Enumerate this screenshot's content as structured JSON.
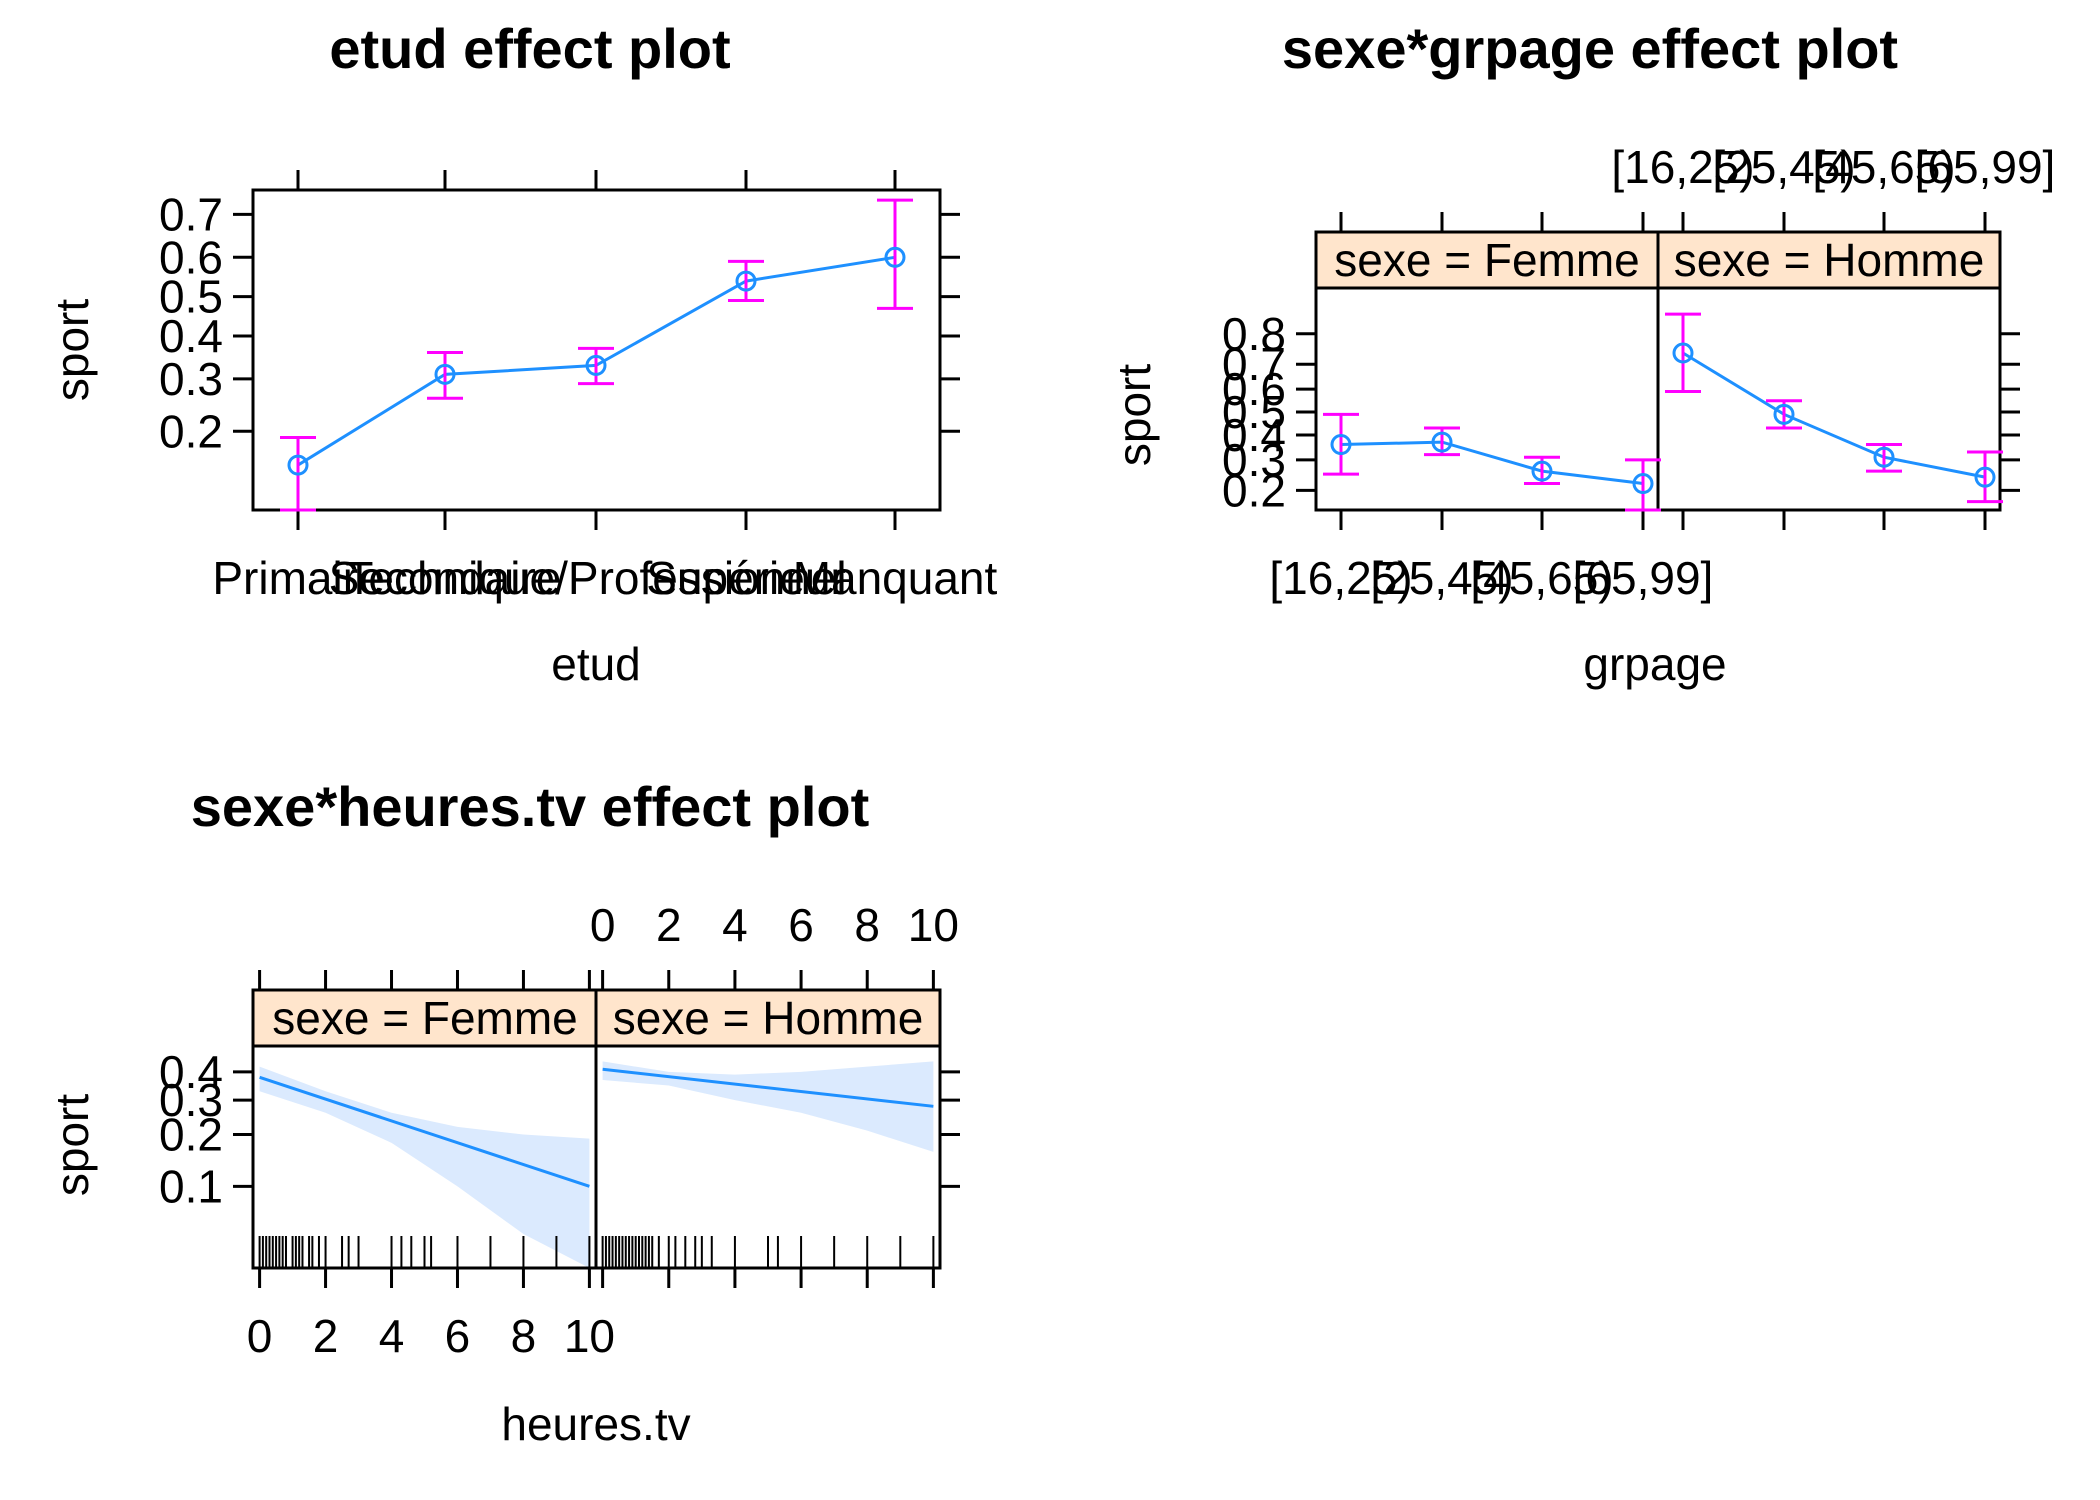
{
  "colors": {
    "line": "#1e90ff",
    "error_bar": "#ff00ff",
    "band": "#dbeafe",
    "strip_bg": "#ffe5cc",
    "frame": "#000000"
  },
  "chart_data": [
    {
      "type": "line",
      "title": "etud effect plot",
      "xlabel": "etud",
      "ylabel": "sport",
      "categories": [
        "Primaire",
        "Secondaire",
        "Technique/Professionnel",
        "Supérieur",
        "Manquant"
      ],
      "series": [
        {
          "name": "sport",
          "values": [
            0.15,
            0.31,
            0.33,
            0.54,
            0.6
          ],
          "lower": [
            0.1,
            0.26,
            0.29,
            0.49,
            0.47
          ],
          "upper": [
            0.19,
            0.36,
            0.37,
            0.59,
            0.73
          ]
        }
      ],
      "yticks": [
        0.2,
        0.3,
        0.4,
        0.5,
        0.6,
        0.7
      ],
      "ytick_labels": [
        "0.2",
        "0.3",
        "0.4",
        "0.5",
        "0.6",
        "0.7"
      ],
      "ylim": [
        0.1,
        0.75
      ],
      "yscale": "logit"
    },
    {
      "type": "line",
      "title": "sexe*grpage effect plot",
      "xlabel": "grpage",
      "ylabel": "sport",
      "categories": [
        "[16,25)",
        "[25,45)",
        "[45,65)",
        "[65,99]"
      ],
      "panels": [
        {
          "strip": "sexe = Femme",
          "values": [
            0.36,
            0.37,
            0.26,
            0.22
          ],
          "lower": [
            0.25,
            0.32,
            0.22,
            0.15
          ],
          "upper": [
            0.49,
            0.43,
            0.31,
            0.3
          ]
        },
        {
          "strip": "sexe = Homme",
          "values": [
            0.74,
            0.49,
            0.31,
            0.24
          ],
          "lower": [
            0.59,
            0.43,
            0.26,
            0.17
          ],
          "upper": [
            0.85,
            0.55,
            0.36,
            0.33
          ]
        }
      ],
      "yticks": [
        0.2,
        0.3,
        0.4,
        0.5,
        0.6,
        0.7,
        0.8
      ],
      "ytick_labels": [
        "0.2",
        "0.3",
        "0.4",
        "0.5",
        "0.6",
        "0.7",
        "0.8"
      ],
      "ylim": [
        0.15,
        0.9
      ],
      "yscale": "logit"
    },
    {
      "type": "line",
      "title": "sexe*heures.tv effect plot",
      "xlabel": "heures.tv",
      "ylabel": "sport",
      "xticks": [
        0,
        2,
        4,
        6,
        8,
        10
      ],
      "xtick_labels": [
        "0",
        "2",
        "4",
        "6",
        "8",
        "10"
      ],
      "xlim": [
        -0.2,
        10.2
      ],
      "panels": [
        {
          "strip": "sexe = Femme",
          "x": [
            0,
            10
          ],
          "values": [
            0.38,
            0.1
          ],
          "band_x": [
            0,
            2,
            4,
            6,
            8,
            10
          ],
          "band_lower": [
            0.33,
            0.26,
            0.18,
            0.1,
            0.05,
            0.03
          ],
          "band_upper": [
            0.42,
            0.33,
            0.26,
            0.22,
            0.2,
            0.19
          ],
          "rug": [
            0,
            0.1,
            0.2,
            0.3,
            0.4,
            0.5,
            0.6,
            0.7,
            0.8,
            1,
            1.1,
            1.2,
            1.3,
            1.5,
            1.6,
            1.8,
            2,
            2.5,
            2.7,
            3,
            4,
            4.3,
            4.6,
            5,
            5.2,
            6,
            7,
            8,
            9,
            10
          ]
        },
        {
          "strip": "sexe = Homme",
          "x": [
            0,
            10
          ],
          "values": [
            0.41,
            0.28
          ],
          "band_x": [
            0,
            2,
            4,
            6,
            8,
            10
          ],
          "band_lower": [
            0.37,
            0.35,
            0.3,
            0.26,
            0.21,
            0.16
          ],
          "band_upper": [
            0.44,
            0.4,
            0.39,
            0.4,
            0.42,
            0.44
          ],
          "rug": [
            0,
            0.1,
            0.2,
            0.3,
            0.4,
            0.5,
            0.6,
            0.7,
            0.8,
            0.9,
            1,
            1.1,
            1.2,
            1.3,
            1.4,
            1.5,
            1.7,
            2,
            2.2,
            2.5,
            2.8,
            3,
            3.3,
            4,
            5,
            5.3,
            6,
            7,
            8,
            9,
            10
          ]
        }
      ],
      "yticks": [
        0.1,
        0.2,
        0.3,
        0.4
      ],
      "ytick_labels": [
        "0.1",
        "0.2",
        "0.3",
        "0.4"
      ],
      "ylim": [
        0.03,
        0.5
      ],
      "yscale": "logit"
    }
  ]
}
